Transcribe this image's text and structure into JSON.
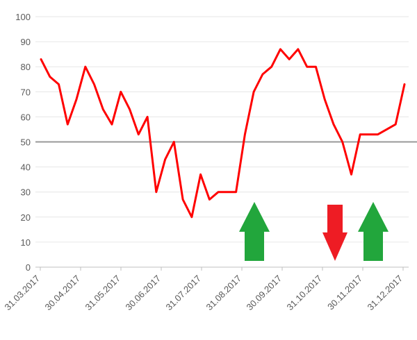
{
  "chart_data": {
    "type": "line",
    "title": "",
    "xlabel": "",
    "ylabel": "",
    "ylim": [
      0,
      100
    ],
    "yticks": [
      0,
      10,
      20,
      30,
      40,
      50,
      60,
      70,
      80,
      90,
      100
    ],
    "grid": true,
    "x_tick_labels": [
      "31.03.2017",
      "30.04.2017",
      "31.05.2017",
      "30.06.2017",
      "31.07.2017",
      "31.08.2017",
      "30.09.2017",
      "31.10.2017",
      "30.11.2017",
      "31.12.2017"
    ],
    "series": [
      {
        "color": "#ff0000",
        "values": [
          83,
          76,
          73,
          57,
          67,
          80,
          73,
          63,
          57,
          70,
          63,
          53,
          60,
          30,
          43,
          50,
          27,
          20,
          37,
          27,
          30,
          30,
          30,
          53,
          70,
          77,
          80,
          87,
          83,
          87,
          80,
          80,
          67,
          57,
          50,
          37,
          53,
          53,
          53,
          55,
          57,
          73
        ]
      }
    ],
    "reference_line": {
      "value": 50,
      "color": "#999999"
    },
    "annotations": [
      {
        "type": "arrow-up",
        "color": "#22a63c",
        "near": "31.08.2017"
      },
      {
        "type": "arrow-down",
        "color": "#ee1c24",
        "near": "31.10.2017"
      },
      {
        "type": "arrow-up",
        "color": "#22a63c",
        "near": "30.11.2017"
      }
    ]
  }
}
